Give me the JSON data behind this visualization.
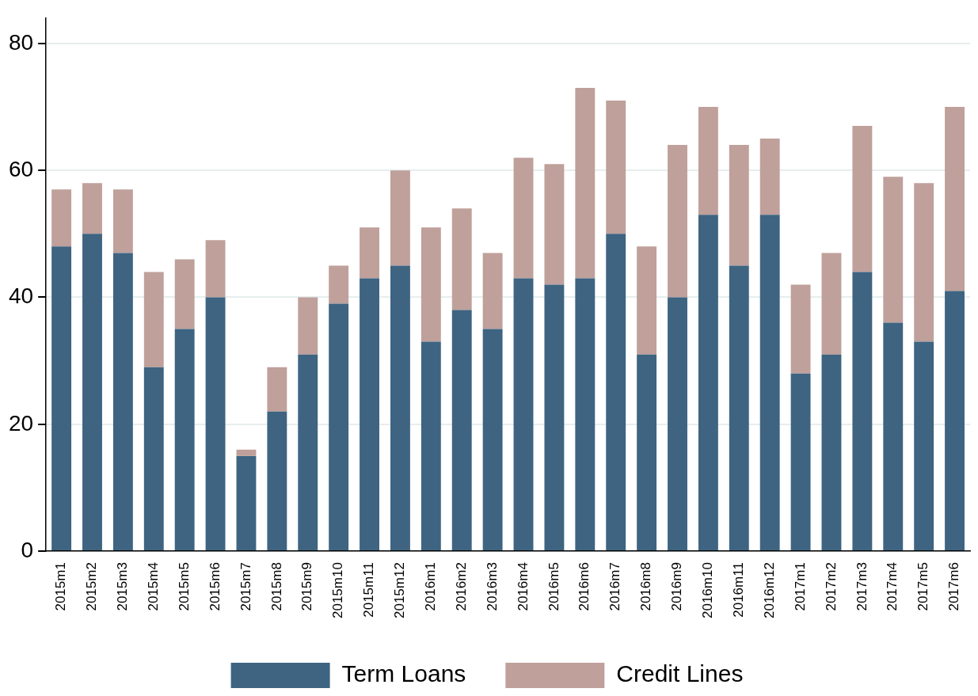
{
  "chart_data": {
    "type": "bar",
    "stacked": true,
    "categories": [
      "2015m1",
      "2015m2",
      "2015m3",
      "2015m4",
      "2015m5",
      "2015m6",
      "2015m7",
      "2015m8",
      "2015m9",
      "2015m10",
      "2015m11",
      "2015m12",
      "2016m1",
      "2016m2",
      "2016m3",
      "2016m4",
      "2016m5",
      "2016m6",
      "2016m7",
      "2016m8",
      "2016m9",
      "2016m10",
      "2016m11",
      "2016m12",
      "2017m1",
      "2017m2",
      "2017m3",
      "2017m4",
      "2017m5",
      "2017m6"
    ],
    "series": [
      {
        "name": "Term Loans",
        "color": "#3e6481",
        "values": [
          48,
          50,
          47,
          29,
          35,
          40,
          15,
          22,
          31,
          39,
          43,
          45,
          33,
          38,
          35,
          43,
          42,
          43,
          50,
          31,
          40,
          53,
          45,
          53,
          28,
          31,
          44,
          36,
          33,
          41
        ]
      },
      {
        "name": "Credit Lines",
        "color": "#bfa09a",
        "values": [
          9,
          8,
          10,
          15,
          11,
          9,
          1,
          7,
          9,
          6,
          8,
          15,
          18,
          16,
          12,
          19,
          19,
          30,
          21,
          17,
          24,
          17,
          19,
          12,
          14,
          16,
          23,
          23,
          25,
          29
        ]
      }
    ],
    "ylim": [
      0,
      84
    ],
    "yticks": [
      0,
      20,
      40,
      60,
      80
    ],
    "grid": "y",
    "legend": "bottom"
  }
}
